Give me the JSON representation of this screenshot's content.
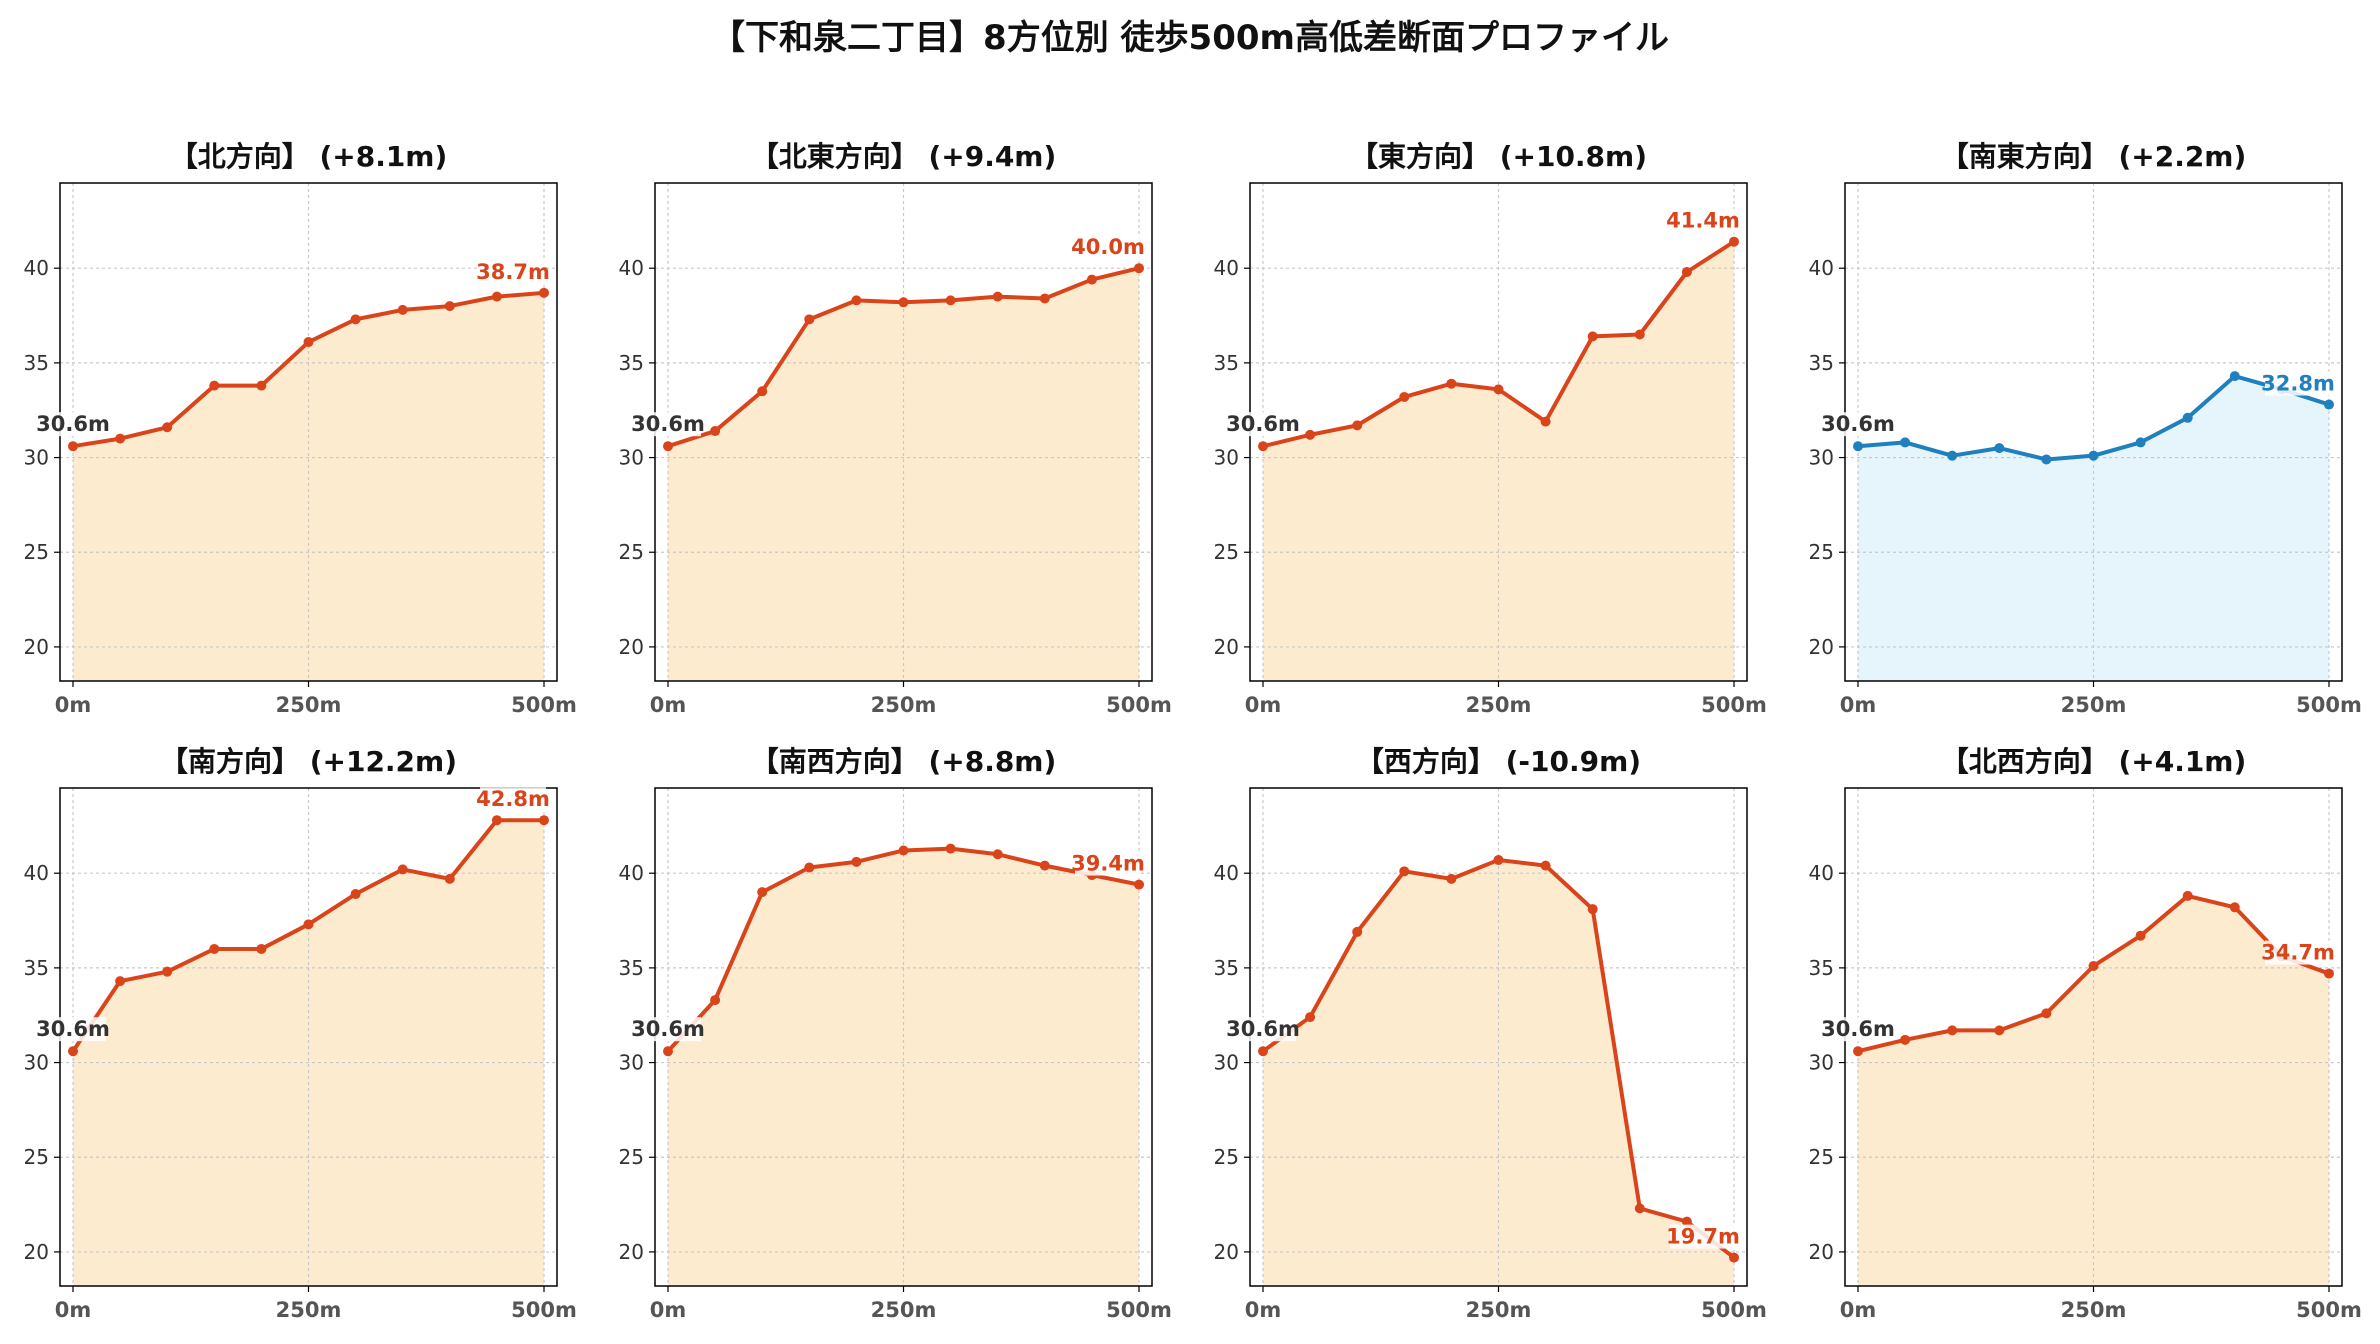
{
  "title": "【下和泉二丁目】8方位別 徒歩500m高低差断面プロファイル",
  "colors": {
    "up_line": "#d9441a",
    "up_fill": "#fdebd0",
    "down_line": "#1f7fbf",
    "down_fill": "#e6f4fb",
    "start_label": "#333333",
    "grid": "#c8c8c8"
  },
  "chart_data": [
    {
      "type": "area",
      "title": "【北方向】 (+8.1m)",
      "theme": "up",
      "x": [
        0,
        50,
        100,
        150,
        200,
        250,
        300,
        350,
        400,
        450,
        500
      ],
      "y": [
        30.6,
        31.0,
        31.6,
        33.8,
        33.8,
        36.1,
        37.3,
        37.8,
        38.0,
        38.5,
        38.7
      ],
      "start_label": "30.6m",
      "end_label": "38.7m",
      "xticks": [
        "0m",
        "250m",
        "500m"
      ],
      "yticks": [
        "20",
        "25",
        "30",
        "35",
        "40"
      ],
      "ylim": [
        18.2,
        44.5
      ],
      "grid": true
    },
    {
      "type": "area",
      "title": "【北東方向】 (+9.4m)",
      "theme": "up",
      "x": [
        0,
        50,
        100,
        150,
        200,
        250,
        300,
        350,
        400,
        450,
        500
      ],
      "y": [
        30.6,
        31.4,
        33.5,
        37.3,
        38.3,
        38.2,
        38.3,
        38.5,
        38.4,
        39.4,
        40.0
      ],
      "start_label": "30.6m",
      "end_label": "40.0m",
      "xticks": [
        "0m",
        "250m",
        "500m"
      ],
      "yticks": [
        "20",
        "25",
        "30",
        "35",
        "40"
      ],
      "ylim": [
        18.2,
        44.5
      ],
      "grid": true
    },
    {
      "type": "area",
      "title": "【東方向】 (+10.8m)",
      "theme": "up",
      "x": [
        0,
        50,
        100,
        150,
        200,
        250,
        300,
        350,
        400,
        450,
        500
      ],
      "y": [
        30.6,
        31.2,
        31.7,
        33.2,
        33.9,
        33.6,
        31.9,
        36.4,
        36.5,
        39.8,
        41.4
      ],
      "start_label": "30.6m",
      "end_label": "41.4m",
      "xticks": [
        "0m",
        "250m",
        "500m"
      ],
      "yticks": [
        "20",
        "25",
        "30",
        "35",
        "40"
      ],
      "ylim": [
        18.2,
        44.5
      ],
      "grid": true
    },
    {
      "type": "area",
      "title": "【南東方向】 (+2.2m)",
      "theme": "down",
      "x": [
        0,
        50,
        100,
        150,
        200,
        250,
        300,
        350,
        400,
        450,
        500
      ],
      "y": [
        30.6,
        30.8,
        30.1,
        30.5,
        29.9,
        30.1,
        30.8,
        32.1,
        34.3,
        33.6,
        32.8
      ],
      "start_label": "30.6m",
      "end_label": "32.8m",
      "xticks": [
        "0m",
        "250m",
        "500m"
      ],
      "yticks": [
        "20",
        "25",
        "30",
        "35",
        "40"
      ],
      "ylim": [
        18.2,
        44.5
      ],
      "grid": true
    },
    {
      "type": "area",
      "title": "【南方向】 (+12.2m)",
      "theme": "up",
      "x": [
        0,
        50,
        100,
        150,
        200,
        250,
        300,
        350,
        400,
        450,
        500
      ],
      "y": [
        30.6,
        34.3,
        34.8,
        36.0,
        36.0,
        37.3,
        38.9,
        40.2,
        39.7,
        42.8,
        42.8
      ],
      "start_label": "30.6m",
      "end_label": "42.8m",
      "xticks": [
        "0m",
        "250m",
        "500m"
      ],
      "yticks": [
        "20",
        "25",
        "30",
        "35",
        "40"
      ],
      "ylim": [
        18.2,
        44.5
      ],
      "grid": true
    },
    {
      "type": "area",
      "title": "【南西方向】 (+8.8m)",
      "theme": "up",
      "x": [
        0,
        50,
        100,
        150,
        200,
        250,
        300,
        350,
        400,
        450,
        500
      ],
      "y": [
        30.6,
        33.3,
        39.0,
        40.3,
        40.6,
        41.2,
        41.3,
        41.0,
        40.4,
        39.9,
        39.4
      ],
      "start_label": "30.6m",
      "end_label": "39.4m",
      "xticks": [
        "0m",
        "250m",
        "500m"
      ],
      "yticks": [
        "20",
        "25",
        "30",
        "35",
        "40"
      ],
      "ylim": [
        18.2,
        44.5
      ],
      "grid": true
    },
    {
      "type": "area",
      "title": "【西方向】 (-10.9m)",
      "theme": "up",
      "x": [
        0,
        50,
        100,
        150,
        200,
        250,
        300,
        350,
        400,
        450,
        500
      ],
      "y": [
        30.6,
        32.4,
        36.9,
        40.1,
        39.7,
        40.7,
        40.4,
        38.1,
        22.3,
        21.6,
        19.7
      ],
      "start_label": "30.6m",
      "end_label": "19.7m",
      "xticks": [
        "0m",
        "250m",
        "500m"
      ],
      "yticks": [
        "20",
        "25",
        "30",
        "35",
        "40"
      ],
      "ylim": [
        18.2,
        44.5
      ],
      "grid": true
    },
    {
      "type": "area",
      "title": "【北西方向】 (+4.1m)",
      "theme": "up",
      "x": [
        0,
        50,
        100,
        150,
        200,
        250,
        300,
        350,
        400,
        450,
        500
      ],
      "y": [
        30.6,
        31.2,
        31.7,
        31.7,
        32.6,
        35.1,
        36.7,
        38.8,
        38.2,
        35.6,
        34.7
      ],
      "start_label": "30.6m",
      "end_label": "34.7m",
      "xticks": [
        "0m",
        "250m",
        "500m"
      ],
      "yticks": [
        "20",
        "25",
        "30",
        "35",
        "40"
      ],
      "ylim": [
        18.2,
        44.5
      ],
      "grid": true
    }
  ]
}
